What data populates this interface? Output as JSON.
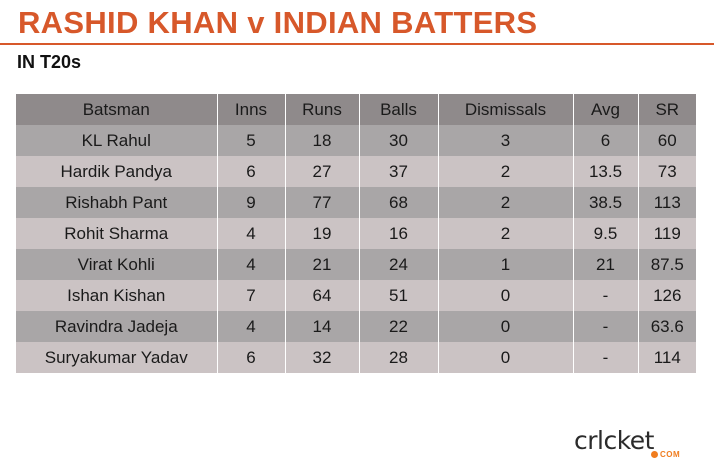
{
  "header": {
    "title": "RASHID KHAN v INDIAN BATTERS",
    "subtitle": "IN T20s"
  },
  "table": {
    "columns": [
      "Batsman",
      "Inns",
      "Runs",
      "Balls",
      "Dismissals",
      "Avg",
      "SR"
    ],
    "rows": [
      [
        "KL Rahul",
        "5",
        "18",
        "30",
        "3",
        "6",
        "60"
      ],
      [
        "Hardik Pandya",
        "6",
        "27",
        "37",
        "2",
        "13.5",
        "73"
      ],
      [
        "Rishabh Pant",
        "9",
        "77",
        "68",
        "2",
        "38.5",
        "113"
      ],
      [
        "Rohit Sharma",
        "4",
        "19",
        "16",
        "2",
        "9.5",
        "119"
      ],
      [
        "Virat Kohli",
        "4",
        "21",
        "24",
        "1",
        "21",
        "87.5"
      ],
      [
        "Ishan Kishan",
        "7",
        "64",
        "51",
        "0",
        "-",
        "126"
      ],
      [
        "Ravindra Jadeja",
        "4",
        "14",
        "22",
        "0",
        "-",
        "63.6"
      ],
      [
        "Suryakumar Yadav",
        "6",
        "32",
        "28",
        "0",
        "-",
        "114"
      ]
    ]
  },
  "logo": {
    "word": "crlcket",
    "sub": "COM"
  },
  "colors": {
    "accent": "#d7582a",
    "header_row": "#8f8a8b",
    "row_dark": "#a9a6a7",
    "row_light": "#cbc3c4",
    "logo_orange": "#f07d1f"
  }
}
